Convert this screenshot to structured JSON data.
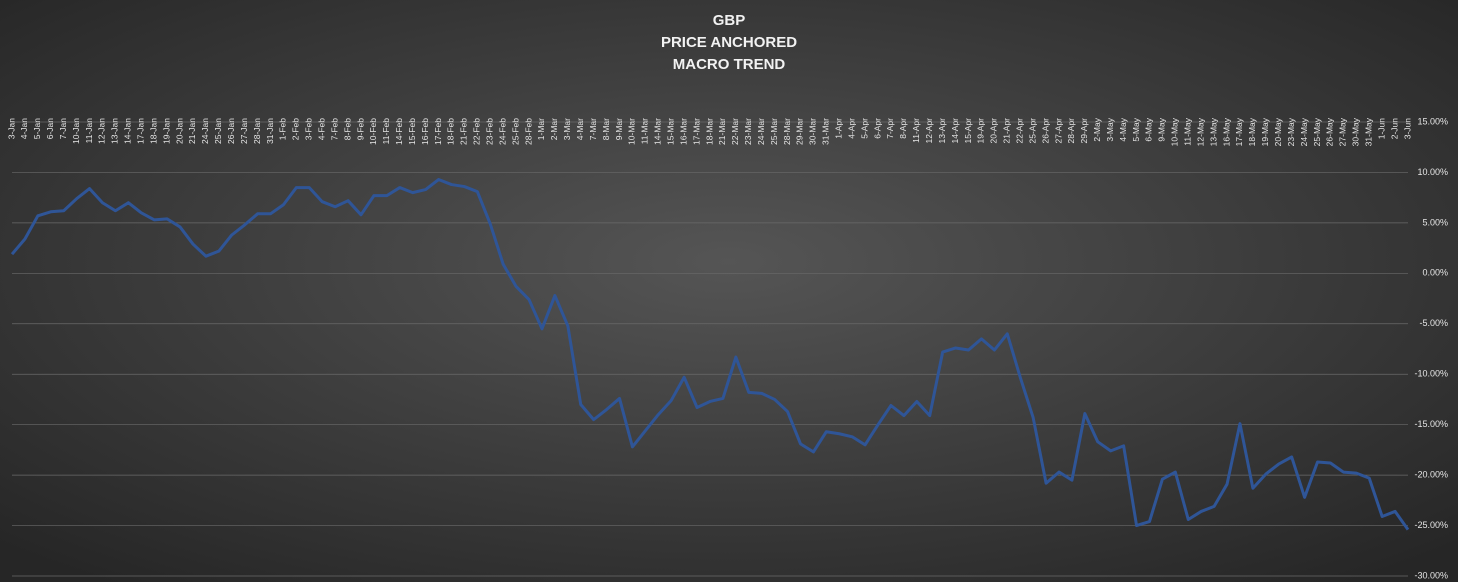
{
  "chart_data": {
    "type": "line",
    "title": [
      "GBP",
      "PRICE ANCHORED",
      "MACRO TREND"
    ],
    "categories": [
      "3-Jan",
      "4-Jan",
      "5-Jan",
      "6-Jan",
      "7-Jan",
      "10-Jan",
      "11-Jan",
      "12-Jan",
      "13-Jan",
      "14-Jan",
      "17-Jan",
      "18-Jan",
      "19-Jan",
      "20-Jan",
      "21-Jan",
      "24-Jan",
      "25-Jan",
      "26-Jan",
      "27-Jan",
      "28-Jan",
      "31-Jan",
      "1-Feb",
      "2-Feb",
      "3-Feb",
      "4-Feb",
      "7-Feb",
      "8-Feb",
      "9-Feb",
      "10-Feb",
      "11-Feb",
      "14-Feb",
      "15-Feb",
      "16-Feb",
      "17-Feb",
      "18-Feb",
      "21-Feb",
      "22-Feb",
      "23-Feb",
      "24-Feb",
      "25-Feb",
      "28-Feb",
      "1-Mar",
      "2-Mar",
      "3-Mar",
      "4-Mar",
      "7-Mar",
      "8-Mar",
      "9-Mar",
      "10-Mar",
      "11-Mar",
      "14-Mar",
      "15-Mar",
      "16-Mar",
      "17-Mar",
      "18-Mar",
      "21-Mar",
      "22-Mar",
      "23-Mar",
      "24-Mar",
      "25-Mar",
      "28-Mar",
      "29-Mar",
      "30-Mar",
      "31-Mar",
      "1-Apr",
      "4-Apr",
      "5-Apr",
      "6-Apr",
      "7-Apr",
      "8-Apr",
      "11-Apr",
      "12-Apr",
      "13-Apr",
      "14-Apr",
      "15-Apr",
      "19-Apr",
      "20-Apr",
      "21-Apr",
      "22-Apr",
      "25-Apr",
      "26-Apr",
      "27-Apr",
      "28-Apr",
      "29-Apr",
      "2-May",
      "3-May",
      "4-May",
      "5-May",
      "6-May",
      "9-May",
      "10-May",
      "11-May",
      "12-May",
      "13-May",
      "16-May",
      "17-May",
      "18-May",
      "19-May",
      "20-May",
      "23-May",
      "24-May",
      "25-May",
      "26-May",
      "27-May",
      "30-May",
      "31-May",
      "1-Jun",
      "2-Jun",
      "3-Jun"
    ],
    "series": [
      {
        "name": "GBP",
        "color": "#2f5597",
        "values": [
          1.9,
          3.4,
          5.7,
          6.1,
          6.2,
          7.4,
          8.4,
          7.0,
          6.2,
          7.0,
          6.0,
          5.3,
          5.4,
          4.6,
          2.9,
          1.7,
          2.2,
          3.8,
          4.8,
          5.9,
          5.9,
          6.8,
          8.5,
          8.5,
          7.1,
          6.6,
          7.2,
          5.8,
          7.7,
          7.7,
          8.5,
          8.0,
          8.3,
          9.3,
          8.8,
          8.6,
          8.1,
          4.9,
          0.9,
          -1.3,
          -2.6,
          -5.5,
          -2.2,
          -5.2,
          -13.0,
          -14.5,
          -13.5,
          -12.4,
          -17.2,
          -15.6,
          -14.0,
          -12.6,
          -10.3,
          -13.3,
          -12.7,
          -12.4,
          -8.3,
          -11.8,
          -11.9,
          -12.5,
          -13.7,
          -16.9,
          -17.7,
          -15.7,
          -15.9,
          -16.2,
          -17.0,
          -15.0,
          -13.1,
          -14.1,
          -12.7,
          -14.1,
          -7.8,
          -7.4,
          -7.6,
          -6.5,
          -7.6,
          -6.0,
          -10.3,
          -14.3,
          -20.8,
          -19.7,
          -20.5,
          -13.9,
          -16.7,
          -17.6,
          -17.1,
          -25.0,
          -24.6,
          -20.4,
          -19.7,
          -24.4,
          -23.6,
          -23.1,
          -20.9,
          -14.9,
          -21.3,
          -19.9,
          -18.9,
          -18.2,
          -22.2,
          -18.7,
          -18.8,
          -19.7,
          -19.8,
          -20.3,
          -24.1,
          -23.6,
          -25.4
        ]
      }
    ],
    "ylim": [
      -30,
      15
    ],
    "yticks": [
      {
        "value": -30,
        "label": "-30.00%"
      },
      {
        "value": -25,
        "label": "-25.00%"
      },
      {
        "value": -20,
        "label": "-20.00%"
      },
      {
        "value": -15,
        "label": "-15.00%"
      },
      {
        "value": -10,
        "label": "-10.00%"
      },
      {
        "value": -5,
        "label": "-5.00%"
      },
      {
        "value": 0,
        "label": "0.00%"
      },
      {
        "value": 5,
        "label": "5.00%"
      },
      {
        "value": 10,
        "label": "10.00%"
      },
      {
        "value": 15,
        "label": "15.00%"
      }
    ],
    "grid": true
  }
}
